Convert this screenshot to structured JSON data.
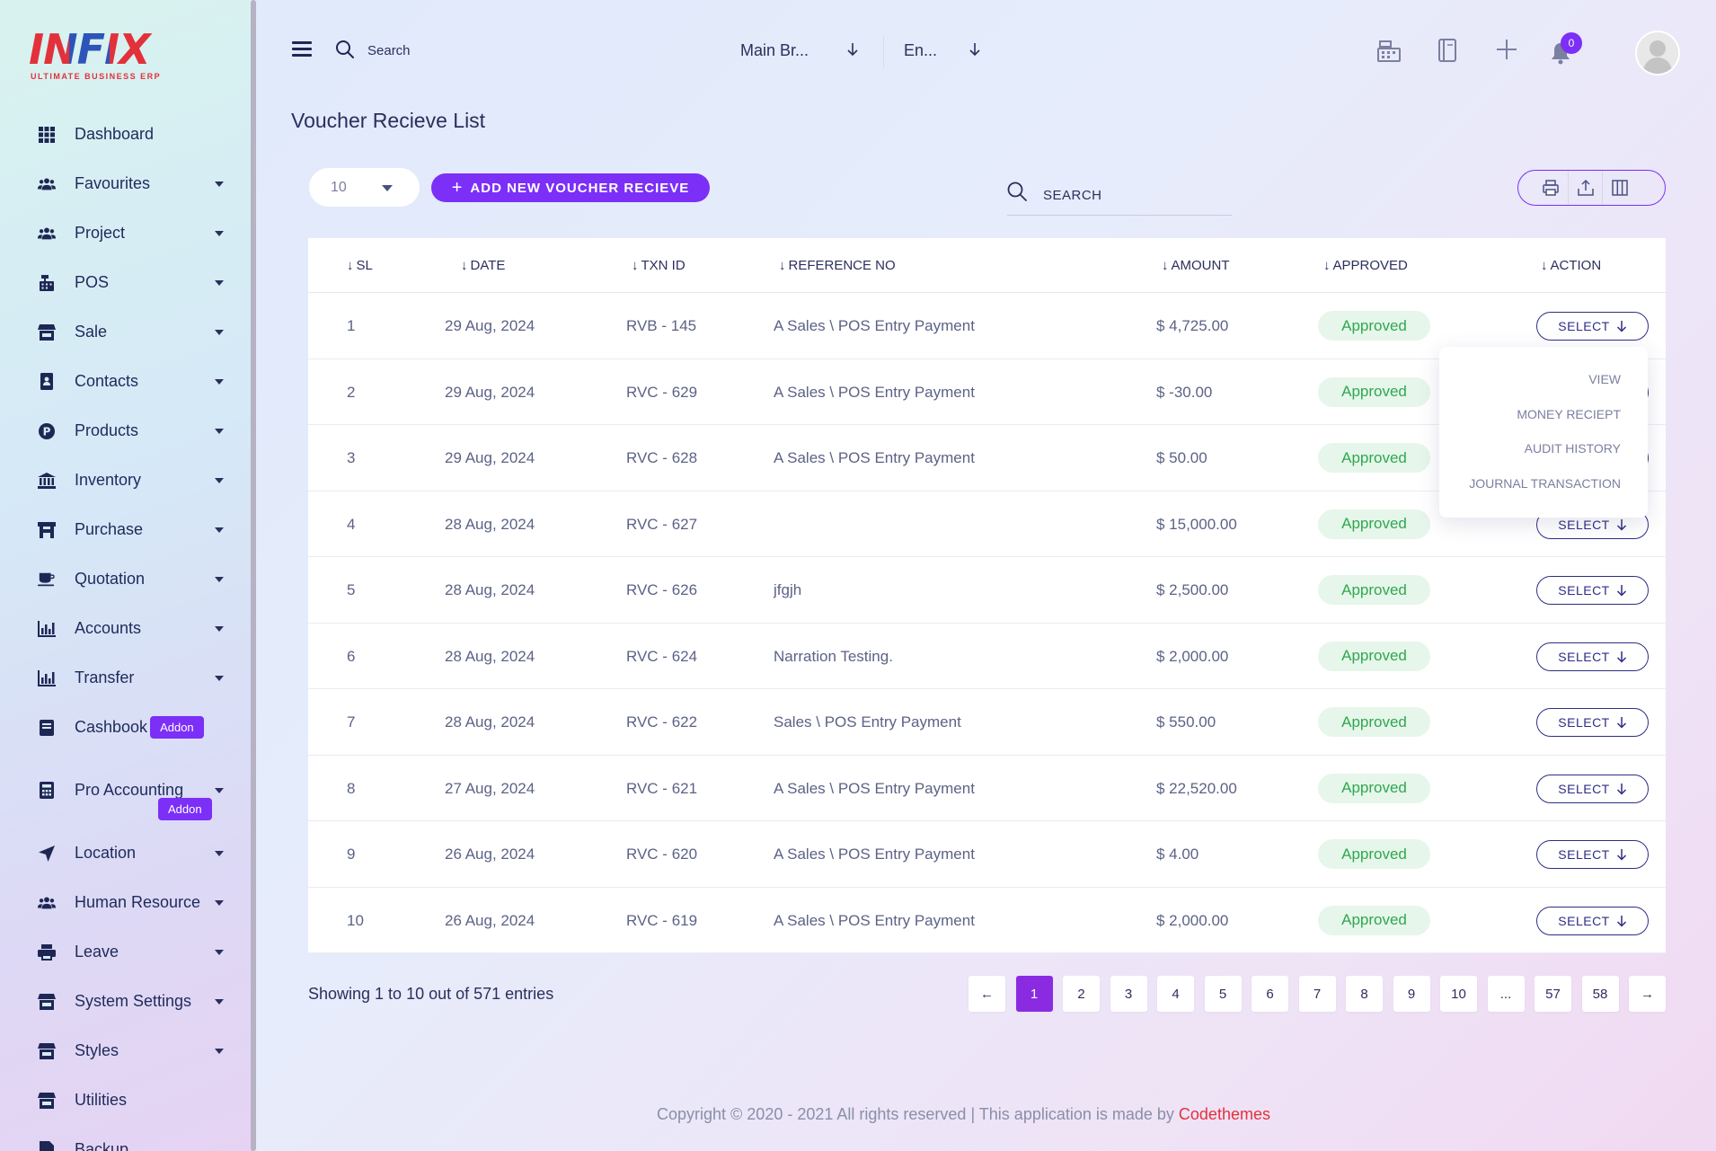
{
  "app": {
    "logo_text": "INFIX",
    "logo_tagline": "ULTIMATE BUSINESS ERP"
  },
  "sidebar": {
    "items": [
      {
        "label": "Dashboard",
        "icon": "grid-icon",
        "caret": false
      },
      {
        "label": "Favourites",
        "icon": "users-icon",
        "caret": true
      },
      {
        "label": "Project",
        "icon": "users-icon",
        "caret": true
      },
      {
        "label": "POS",
        "icon": "cash-register-icon",
        "caret": true
      },
      {
        "label": "Sale",
        "icon": "store-icon",
        "caret": true
      },
      {
        "label": "Contacts",
        "icon": "contact-book-icon",
        "caret": true
      },
      {
        "label": "Products",
        "icon": "product-p-icon",
        "caret": true
      },
      {
        "label": "Inventory",
        "icon": "bank-icon",
        "caret": true
      },
      {
        "label": "Purchase",
        "icon": "cart-icon",
        "caret": true
      },
      {
        "label": "Quotation",
        "icon": "coffee-icon",
        "caret": true
      },
      {
        "label": "Accounts",
        "icon": "bar-chart-icon",
        "caret": true
      },
      {
        "label": "Transfer",
        "icon": "bar-chart-icon",
        "caret": true
      },
      {
        "label": "Cashbook",
        "icon": "book-icon",
        "caret": false,
        "addon": "Addon"
      },
      {
        "label": "Pro Accounting",
        "icon": "calculator-icon",
        "caret": true,
        "addon": "Addon"
      },
      {
        "label": "Location",
        "icon": "location-arrow-icon",
        "caret": true
      },
      {
        "label": "Human Resource",
        "icon": "users-icon",
        "caret": true
      },
      {
        "label": "Leave",
        "icon": "printer-icon",
        "caret": true
      },
      {
        "label": "System Settings",
        "icon": "store-icon",
        "caret": true
      },
      {
        "label": "Styles",
        "icon": "store-icon",
        "caret": true
      },
      {
        "label": "Utilities",
        "icon": "store-icon",
        "caret": false
      },
      {
        "label": "Backup",
        "icon": "file-icon",
        "caret": false
      }
    ]
  },
  "topbar": {
    "search_placeholder": "Search",
    "branch": "Main Br...",
    "language": "En...",
    "notification_count": "0"
  },
  "page": {
    "title": "Voucher Recieve List",
    "page_size": "10",
    "add_button": "ADD NEW VOUCHER RECIEVE",
    "search_placeholder": "SEARCH"
  },
  "table": {
    "headers": {
      "sl": "SL",
      "date": "DATE",
      "txn_id": "TXN ID",
      "reference_no": "REFERENCE NO",
      "amount": "AMOUNT",
      "approved": "APPROVED",
      "action": "ACTION"
    },
    "select_label": "SELECT",
    "rows": [
      {
        "sl": "1",
        "date": "29 Aug, 2024",
        "txn_id": "RVB - 145",
        "reference": "A Sales \\ POS Entry Payment",
        "amount": "$ 4,725.00",
        "status": "Approved"
      },
      {
        "sl": "2",
        "date": "29 Aug, 2024",
        "txn_id": "RVC - 629",
        "reference": "A Sales \\ POS Entry Payment",
        "amount": "$ -30.00",
        "status": "Approved"
      },
      {
        "sl": "3",
        "date": "29 Aug, 2024",
        "txn_id": "RVC - 628",
        "reference": "A Sales \\ POS Entry Payment",
        "amount": "$ 50.00",
        "status": "Approved"
      },
      {
        "sl": "4",
        "date": "28 Aug, 2024",
        "txn_id": "RVC - 627",
        "reference": "",
        "amount": "$ 15,000.00",
        "status": "Approved"
      },
      {
        "sl": "5",
        "date": "28 Aug, 2024",
        "txn_id": "RVC - 626",
        "reference": "jfgjh",
        "amount": "$ 2,500.00",
        "status": "Approved"
      },
      {
        "sl": "6",
        "date": "28 Aug, 2024",
        "txn_id": "RVC - 624",
        "reference": "Narration Testing.",
        "amount": "$ 2,000.00",
        "status": "Approved"
      },
      {
        "sl": "7",
        "date": "28 Aug, 2024",
        "txn_id": "RVC - 622",
        "reference": "Sales \\ POS Entry Payment",
        "amount": "$ 550.00",
        "status": "Approved"
      },
      {
        "sl": "8",
        "date": "27 Aug, 2024",
        "txn_id": "RVC - 621",
        "reference": "A Sales \\ POS Entry Payment",
        "amount": "$ 22,520.00",
        "status": "Approved"
      },
      {
        "sl": "9",
        "date": "26 Aug, 2024",
        "txn_id": "RVC - 620",
        "reference": "A Sales \\ POS Entry Payment",
        "amount": "$ 4.00",
        "status": "Approved"
      },
      {
        "sl": "10",
        "date": "26 Aug, 2024",
        "txn_id": "RVC - 619",
        "reference": "A Sales \\ POS Entry Payment",
        "amount": "$ 2,000.00",
        "status": "Approved"
      }
    ]
  },
  "action_menu": {
    "items": [
      "VIEW",
      "MONEY RECIEPT",
      "AUDIT HISTORY",
      "JOURNAL TRANSACTION"
    ]
  },
  "pagination": {
    "showing": "Showing 1 to 10 out of 571 entries",
    "prev": "←",
    "next": "→",
    "pages": [
      "1",
      "2",
      "3",
      "4",
      "5",
      "6",
      "7",
      "8",
      "9",
      "10",
      "...",
      "57",
      "58"
    ],
    "active": "1"
  },
  "footer": {
    "text": "Copyright © 2020 - 2021 All rights reserved | This application is made by ",
    "brand": "Codethemes"
  },
  "colors": {
    "accent": "#7b2ff7",
    "approved_bg": "#e6f6ea",
    "approved_text": "#2fa84f",
    "brand_red": "#e2313b"
  }
}
